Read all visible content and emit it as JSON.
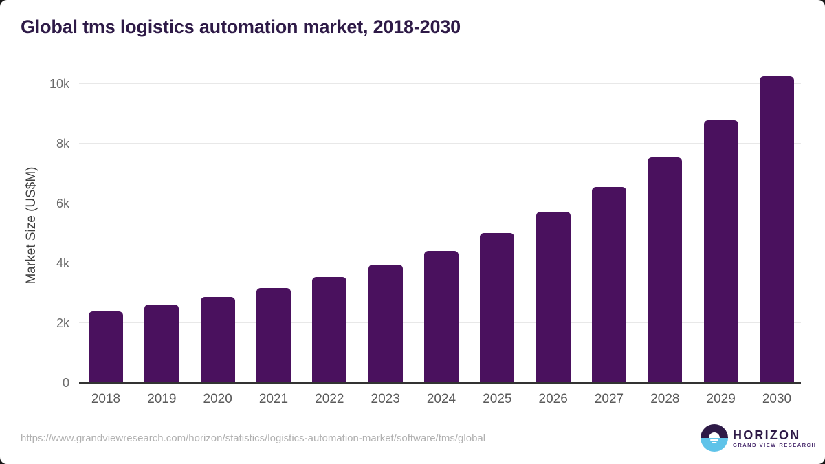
{
  "page": {
    "title": "Global tms logistics automation market, 2018-2030",
    "source_url": "https://www.grandviewresearch.com/horizon/statistics/logistics-automation-market/software/tms/global"
  },
  "chart_data": {
    "type": "bar",
    "title": "Global tms logistics automation market, 2018-2030",
    "categories": [
      "2018",
      "2019",
      "2020",
      "2021",
      "2022",
      "2023",
      "2024",
      "2025",
      "2026",
      "2027",
      "2028",
      "2029",
      "2030"
    ],
    "values": [
      2390,
      2620,
      2870,
      3170,
      3550,
      3950,
      4420,
      5020,
      5720,
      6540,
      7540,
      8770,
      10240
    ],
    "units": "US$M",
    "xlabel": "",
    "ylabel": "Market Size (US$M)",
    "ylim": [
      0,
      10500
    ],
    "yticks": [
      {
        "value": 0,
        "label": "0"
      },
      {
        "value": 2000,
        "label": "2k"
      },
      {
        "value": 4000,
        "label": "4k"
      },
      {
        "value": 6000,
        "label": "6k"
      },
      {
        "value": 8000,
        "label": "8k"
      },
      {
        "value": 10000,
        "label": "10k"
      }
    ],
    "grid": "horizontal",
    "legend_position": "none",
    "bar_color": "#4a115e"
  },
  "branding": {
    "logo_title": "HORIZON",
    "logo_subtitle": "GRAND VIEW RESEARCH"
  },
  "colors": {
    "title": "#2e1a47",
    "bar": "#4a115e",
    "axis_label": "#3f3f3f",
    "tick_label": "#6b6b6b",
    "gridline": "#e8e8e8",
    "axis_line": "#333333",
    "source_text": "#b0b0b0",
    "logo_purple": "#2e1a47",
    "logo_blue": "#5fc3e9"
  }
}
